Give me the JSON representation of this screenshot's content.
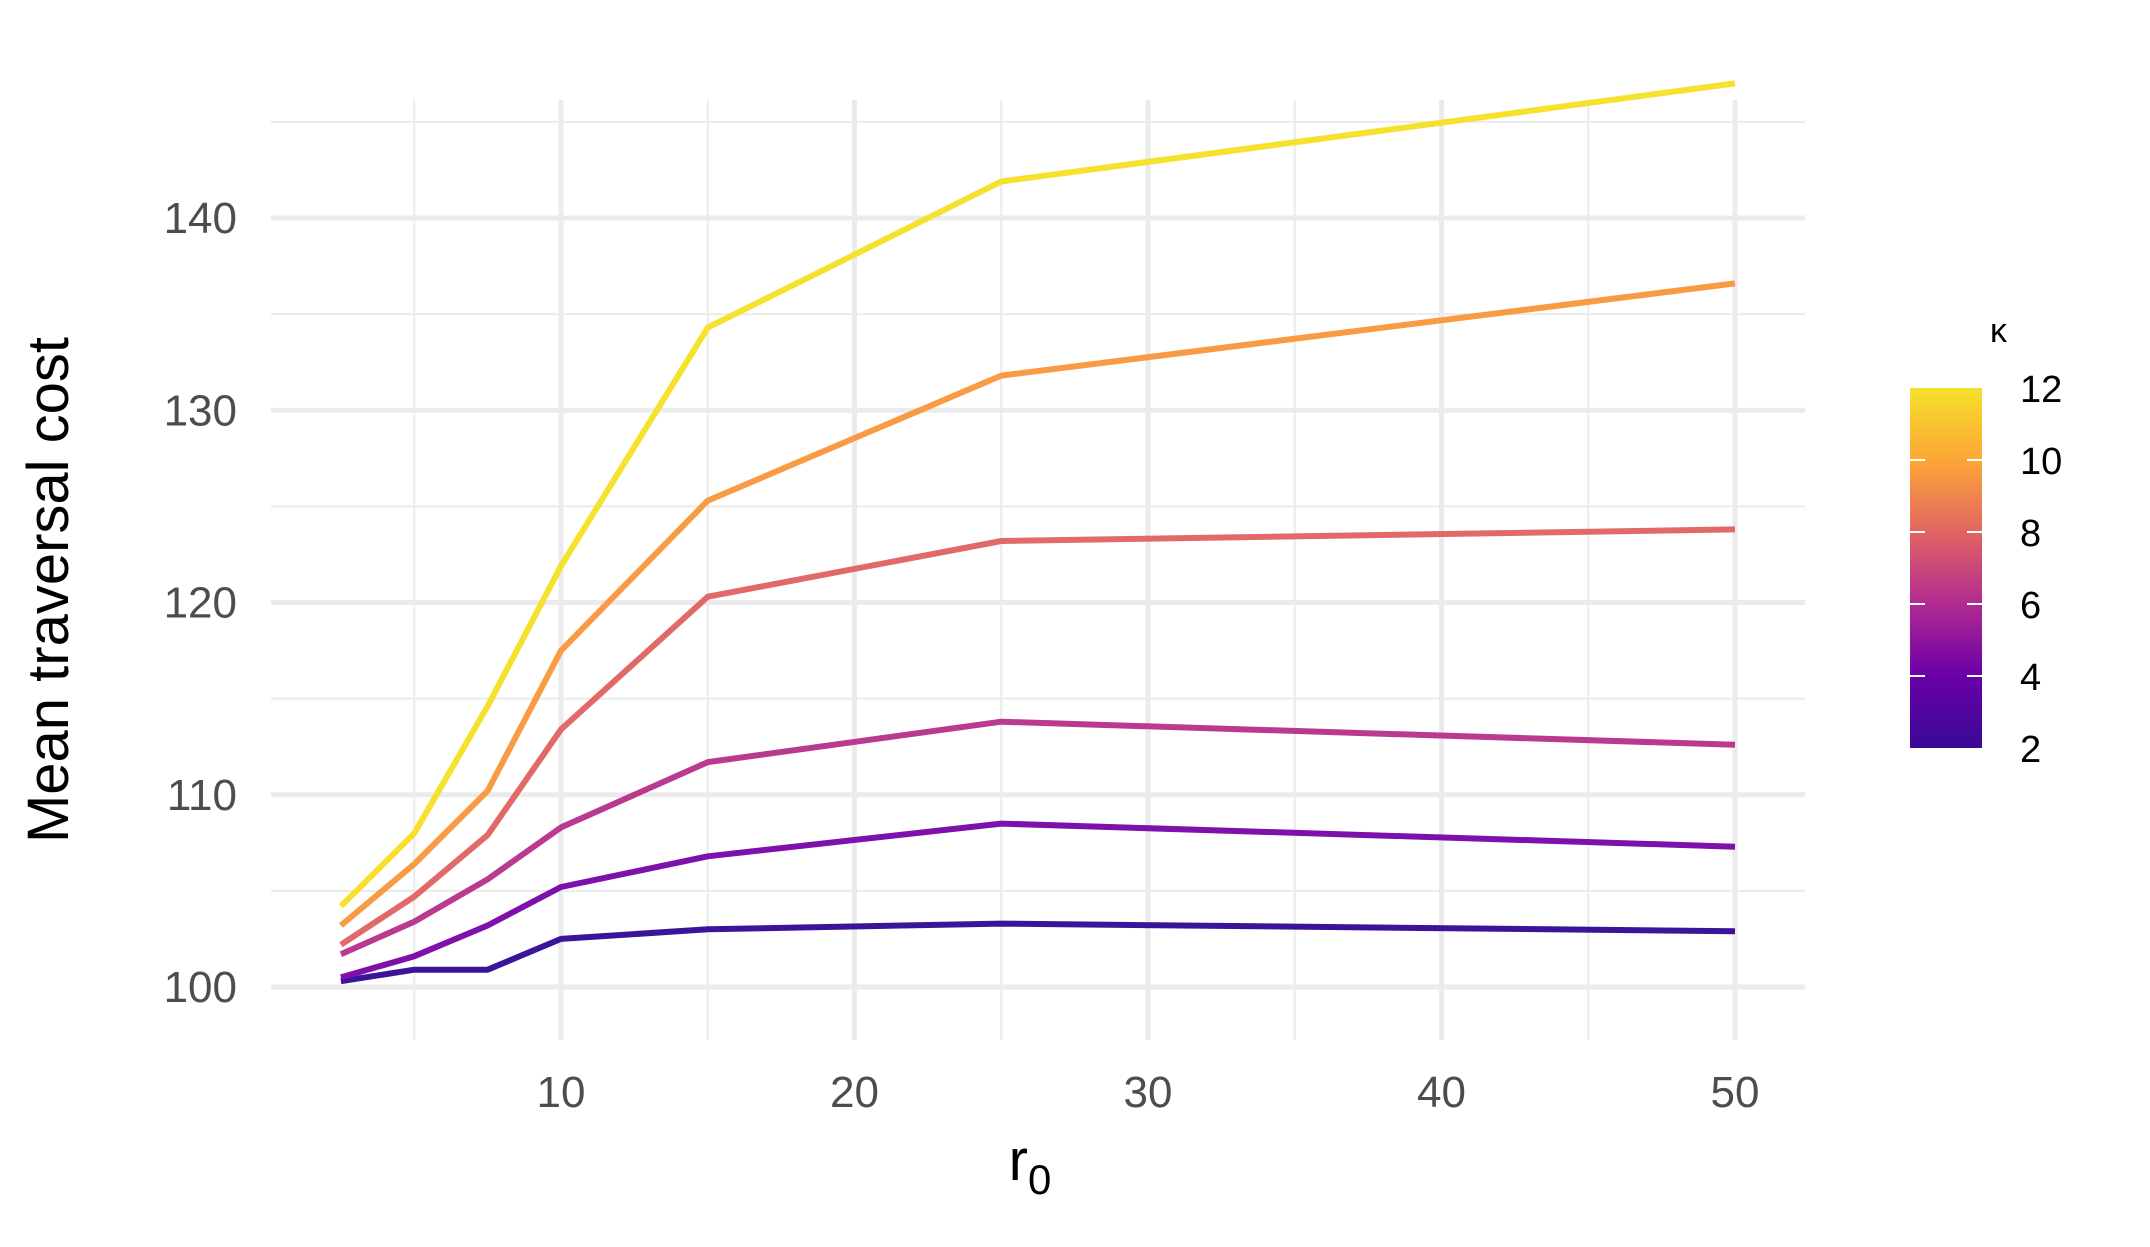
{
  "chart_data": {
    "type": "line",
    "title": "",
    "xlabel": "r",
    "xlabel_subscript": "0",
    "ylabel": "Mean traversal cost",
    "x": [
      2.5,
      5,
      7.5,
      10,
      15,
      25,
      50
    ],
    "xlim": [
      0,
      52
    ],
    "ylim": [
      98,
      148
    ],
    "x_ticks": [
      10,
      20,
      30,
      40,
      50
    ],
    "y_ticks": [
      100,
      110,
      120,
      130,
      140
    ],
    "grid": true,
    "legend": {
      "title": "κ",
      "type": "colorbar",
      "placement": "right",
      "ticks": [
        2,
        4,
        6,
        8,
        10,
        12
      ],
      "range": [
        2,
        12
      ],
      "palette": [
        "#0d0887",
        "#6a00a8",
        "#b12a90",
        "#e16462",
        "#fca636",
        "#f0f921"
      ]
    },
    "series": [
      {
        "kappa": 2,
        "color": "#3b149a",
        "values": [
          100.3,
          100.9,
          100.9,
          102.5,
          103.0,
          103.3,
          102.9
        ]
      },
      {
        "kappa": 4,
        "color": "#7e10ab",
        "values": [
          100.5,
          101.6,
          103.2,
          105.2,
          106.8,
          108.5,
          107.3
        ]
      },
      {
        "kappa": 6,
        "color": "#b93a90",
        "values": [
          101.7,
          103.4,
          105.6,
          108.3,
          111.7,
          113.8,
          112.6
        ]
      },
      {
        "kappa": 8,
        "color": "#e16a69",
        "values": [
          102.2,
          104.7,
          107.9,
          113.4,
          120.3,
          123.2,
          123.8
        ]
      },
      {
        "kappa": 10,
        "color": "#f99b45",
        "values": [
          103.2,
          106.4,
          110.2,
          117.5,
          125.3,
          131.8,
          136.6
        ]
      },
      {
        "kappa": 12,
        "color": "#f6e12c",
        "values": [
          104.2,
          108.0,
          114.6,
          121.9,
          134.3,
          141.9,
          147.0
        ]
      }
    ]
  }
}
